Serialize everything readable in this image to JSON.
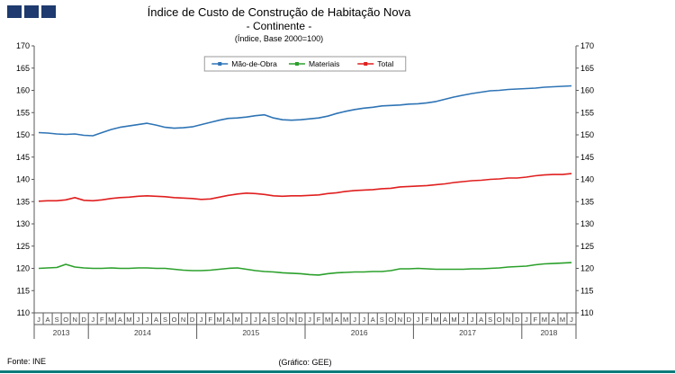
{
  "logo": {
    "color": "#1E3A6E"
  },
  "title": {
    "line1": "Índice de Custo de Construção de Habitação Nova",
    "line2": "- Continente -",
    "line3": "(Índice, Base 2000=100)"
  },
  "footer": {
    "source": "Fonte: INE",
    "credit": "(Gráfico: GEE)",
    "rule_color": "#0C7C7B"
  },
  "chart_data": {
    "type": "line",
    "title": "Índice de Custo de Construção de Habitação Nova - Continente (Índice, Base 2000=100)",
    "ylim": [
      110,
      170
    ],
    "yticks": [
      110,
      115,
      120,
      125,
      130,
      135,
      140,
      145,
      150,
      155,
      160,
      165,
      170
    ],
    "grid": false,
    "legend_position": "top-center",
    "axis_color": "#595959",
    "months": [
      "J",
      "A",
      "S",
      "O",
      "N",
      "D",
      "J",
      "F",
      "M",
      "A",
      "M",
      "J",
      "J",
      "A",
      "S",
      "O",
      "N",
      "D",
      "J",
      "F",
      "M",
      "A",
      "M",
      "J",
      "J",
      "A",
      "S",
      "O",
      "N",
      "D",
      "J",
      "F",
      "M",
      "A",
      "M",
      "J",
      "J",
      "A",
      "S",
      "O",
      "N",
      "D",
      "J",
      "F",
      "M",
      "A",
      "M",
      "J",
      "J",
      "A",
      "S",
      "O",
      "N",
      "D",
      "J",
      "F",
      "M",
      "A",
      "M",
      "J"
    ],
    "years": [
      {
        "label": "2013",
        "count": 6
      },
      {
        "label": "2014",
        "count": 12
      },
      {
        "label": "2015",
        "count": 12
      },
      {
        "label": "2016",
        "count": 12
      },
      {
        "label": "2017",
        "count": 12
      },
      {
        "label": "2018",
        "count": 6
      }
    ],
    "series": [
      {
        "name": "Mão-de-Obra",
        "color": "#2E74B5",
        "values": [
          150.5,
          150.4,
          150.2,
          150.1,
          150.2,
          149.9,
          149.8,
          150.5,
          151.2,
          151.7,
          152.0,
          152.3,
          152.6,
          152.2,
          151.7,
          151.5,
          151.6,
          151.8,
          152.3,
          152.8,
          153.3,
          153.7,
          153.8,
          154.0,
          154.3,
          154.5,
          153.8,
          153.4,
          153.3,
          153.4,
          153.6,
          153.8,
          154.2,
          154.8,
          155.3,
          155.7,
          156.0,
          156.2,
          156.5,
          156.6,
          156.7,
          156.9,
          157.0,
          157.2,
          157.5,
          158.0,
          158.5,
          158.9,
          159.3,
          159.6,
          159.9,
          160.0,
          160.2,
          160.3,
          160.4,
          160.5,
          160.7,
          160.8,
          160.9,
          161.0
        ]
      },
      {
        "name": "Materiais",
        "color": "#2BA02B",
        "values": [
          120.0,
          120.1,
          120.2,
          120.9,
          120.3,
          120.1,
          120.0,
          120.0,
          120.1,
          120.0,
          120.0,
          120.1,
          120.1,
          120.0,
          120.0,
          119.8,
          119.6,
          119.5,
          119.5,
          119.6,
          119.8,
          120.0,
          120.1,
          119.8,
          119.5,
          119.3,
          119.2,
          119.0,
          118.9,
          118.8,
          118.6,
          118.5,
          118.8,
          119.0,
          119.1,
          119.2,
          119.2,
          119.3,
          119.3,
          119.5,
          119.9,
          119.9,
          120.0,
          119.9,
          119.8,
          119.8,
          119.8,
          119.8,
          119.9,
          119.9,
          120.0,
          120.1,
          120.3,
          120.4,
          120.5,
          120.8,
          121.0,
          121.1,
          121.2,
          121.3
        ]
      },
      {
        "name": "Total",
        "color": "#E01F1F",
        "values": [
          135.1,
          135.2,
          135.2,
          135.4,
          135.9,
          135.3,
          135.2,
          135.4,
          135.7,
          135.9,
          136.0,
          136.2,
          136.3,
          136.2,
          136.1,
          135.9,
          135.8,
          135.7,
          135.5,
          135.6,
          136.0,
          136.4,
          136.7,
          136.9,
          136.8,
          136.6,
          136.3,
          136.2,
          136.3,
          136.3,
          136.4,
          136.5,
          136.8,
          137.0,
          137.3,
          137.5,
          137.6,
          137.7,
          137.9,
          138.0,
          138.3,
          138.4,
          138.5,
          138.6,
          138.8,
          139.0,
          139.3,
          139.5,
          139.7,
          139.8,
          140.0,
          140.1,
          140.3,
          140.3,
          140.5,
          140.8,
          141.0,
          141.1,
          141.1,
          141.3
        ]
      }
    ]
  }
}
